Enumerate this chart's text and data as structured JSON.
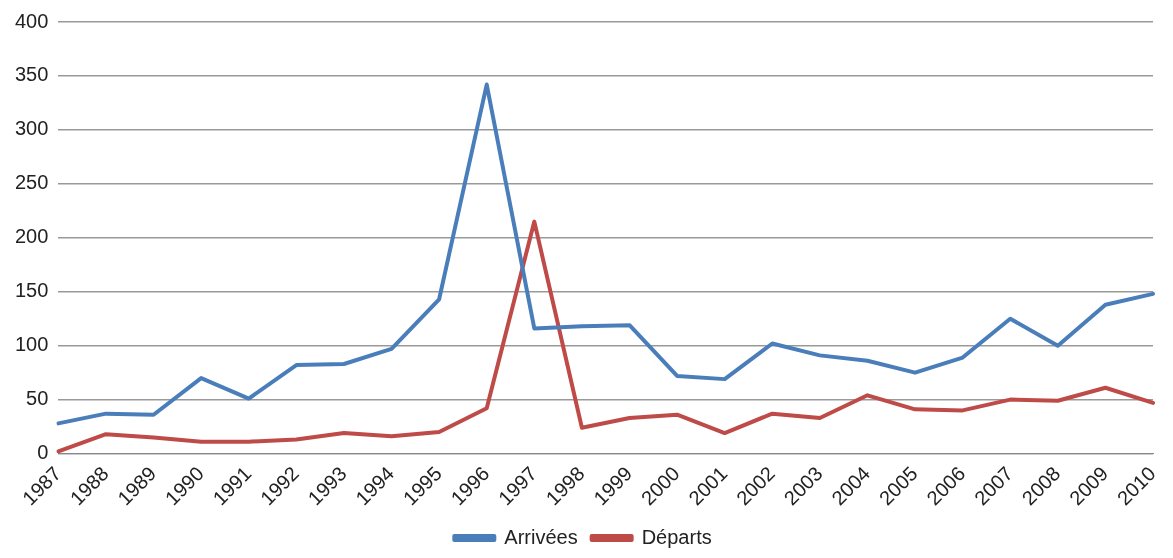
{
  "chart_data": {
    "type": "line",
    "categories": [
      "1987",
      "1988",
      "1989",
      "1990",
      "1991",
      "1992",
      "1993",
      "1994",
      "1995",
      "1996",
      "1997",
      "1998",
      "1999",
      "2000",
      "2001",
      "2002",
      "2003",
      "2004",
      "2005",
      "2006",
      "2007",
      "2008",
      "2009",
      "2010"
    ],
    "series": [
      {
        "name": "Arrivées",
        "color": "#4a7ebb",
        "values": [
          28,
          37,
          36,
          70,
          51,
          82,
          83,
          97,
          143,
          342,
          116,
          118,
          119,
          72,
          69,
          102,
          91,
          86,
          75,
          89,
          125,
          100,
          138,
          148
        ]
      },
      {
        "name": "Départs",
        "color": "#be4b48",
        "values": [
          2,
          18,
          15,
          11,
          11,
          13,
          19,
          16,
          20,
          42,
          215,
          24,
          33,
          36,
          19,
          37,
          33,
          54,
          41,
          40,
          50,
          49,
          61,
          47
        ]
      }
    ],
    "ylim": [
      0,
      400
    ],
    "yticks": [
      0,
      50,
      100,
      150,
      200,
      250,
      300,
      350,
      400
    ],
    "grid": "y",
    "legend": "bottom",
    "marker": "none",
    "line_style": "solid"
  }
}
